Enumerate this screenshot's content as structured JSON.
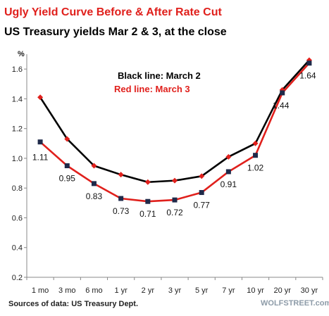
{
  "header": {
    "title": "Ugly Yield Curve  Before & After Rate Cut",
    "subtitle": "US Treasury yields Mar 2 & 3, at the close"
  },
  "legend": {
    "black_label": "Black line: March 2",
    "red_label": "Red line: March 3"
  },
  "footer": {
    "source": "Sources of data: US Treasury Dept.",
    "watermark": "WOLFSTREET.com"
  },
  "colors": {
    "accent_red": "#e0201c",
    "line_black": "#000000",
    "marker_navy": "#1f2a4a"
  },
  "chart_data": {
    "type": "line",
    "title": "Ugly Yield Curve  Before & After Rate Cut",
    "subtitle": "US Treasury yields Mar 2 & 3, at the close",
    "xlabel": "",
    "ylabel": "%",
    "ylim": [
      0.2,
      1.7
    ],
    "yticks": [
      0.2,
      0.4,
      0.6,
      0.8,
      1.0,
      1.2,
      1.4,
      1.6
    ],
    "ytick_labels": [
      "0.2",
      "0.4",
      "0.6",
      "0.8",
      "1.0",
      "1.2",
      "1.4",
      "1.6"
    ],
    "grid": false,
    "legend_position": "top-center",
    "categories": [
      "1 mo",
      "3 mo",
      "6 mo",
      "1 yr",
      "2 yr",
      "3 yr",
      "5 yr",
      "7 yr",
      "10 yr",
      "20 yr",
      "30 yr"
    ],
    "series": [
      {
        "name": "March 2",
        "color": "#000000",
        "marker_color": "#e0201c",
        "values": [
          1.41,
          1.13,
          0.95,
          0.89,
          0.84,
          0.85,
          0.88,
          1.01,
          1.1,
          1.46,
          1.66
        ]
      },
      {
        "name": "March 3",
        "color": "#e0201c",
        "marker_color": "#1f2a4a",
        "values": [
          1.11,
          0.95,
          0.83,
          0.73,
          0.71,
          0.72,
          0.77,
          0.91,
          1.02,
          1.44,
          1.64
        ],
        "data_labels": [
          "1.11",
          "0.95",
          "0.83",
          "0.73",
          "0.71",
          "0.72",
          "0.77",
          "0.91",
          "1.02",
          "1.44",
          "1.64"
        ]
      }
    ]
  }
}
